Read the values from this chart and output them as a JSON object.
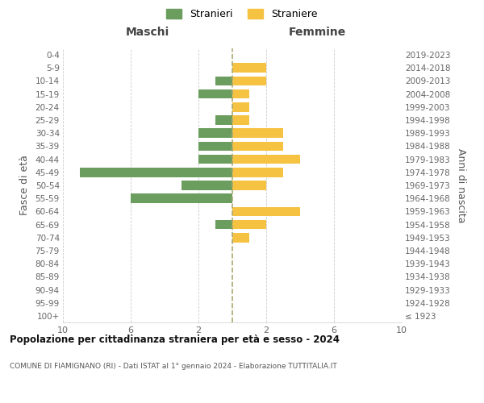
{
  "age_groups": [
    "100+",
    "95-99",
    "90-94",
    "85-89",
    "80-84",
    "75-79",
    "70-74",
    "65-69",
    "60-64",
    "55-59",
    "50-54",
    "45-49",
    "40-44",
    "35-39",
    "30-34",
    "25-29",
    "20-24",
    "15-19",
    "10-14",
    "5-9",
    "0-4"
  ],
  "birth_years": [
    "≤ 1923",
    "1924-1928",
    "1929-1933",
    "1934-1938",
    "1939-1943",
    "1944-1948",
    "1949-1953",
    "1954-1958",
    "1959-1963",
    "1964-1968",
    "1969-1973",
    "1974-1978",
    "1979-1983",
    "1984-1988",
    "1989-1993",
    "1994-1998",
    "1999-2003",
    "2004-2008",
    "2009-2013",
    "2014-2018",
    "2019-2023"
  ],
  "maschi": [
    0,
    0,
    0,
    0,
    0,
    0,
    0,
    1,
    0,
    6,
    3,
    9,
    2,
    2,
    2,
    1,
    0,
    2,
    1,
    0,
    0
  ],
  "femmine": [
    0,
    0,
    0,
    0,
    0,
    0,
    1,
    2,
    4,
    0,
    2,
    3,
    4,
    3,
    3,
    1,
    1,
    1,
    2,
    2,
    0
  ],
  "color_maschi": "#6b9e5e",
  "color_femmine": "#f5c242",
  "title": "Popolazione per cittadinanza straniera per età e sesso - 2024",
  "subtitle": "COMUNE DI FIAMIGNANO (RI) - Dati ISTAT al 1° gennaio 2024 - Elaborazione TUTTITALIA.IT",
  "xlabel_left": "Maschi",
  "xlabel_right": "Femmine",
  "ylabel_left": "Fasce di età",
  "ylabel_right": "Anni di nascita",
  "legend_maschi": "Stranieri",
  "legend_femmine": "Straniere",
  "xlim": 10,
  "background_color": "#ffffff",
  "grid_color": "#cccccc",
  "bar_height": 0.72
}
